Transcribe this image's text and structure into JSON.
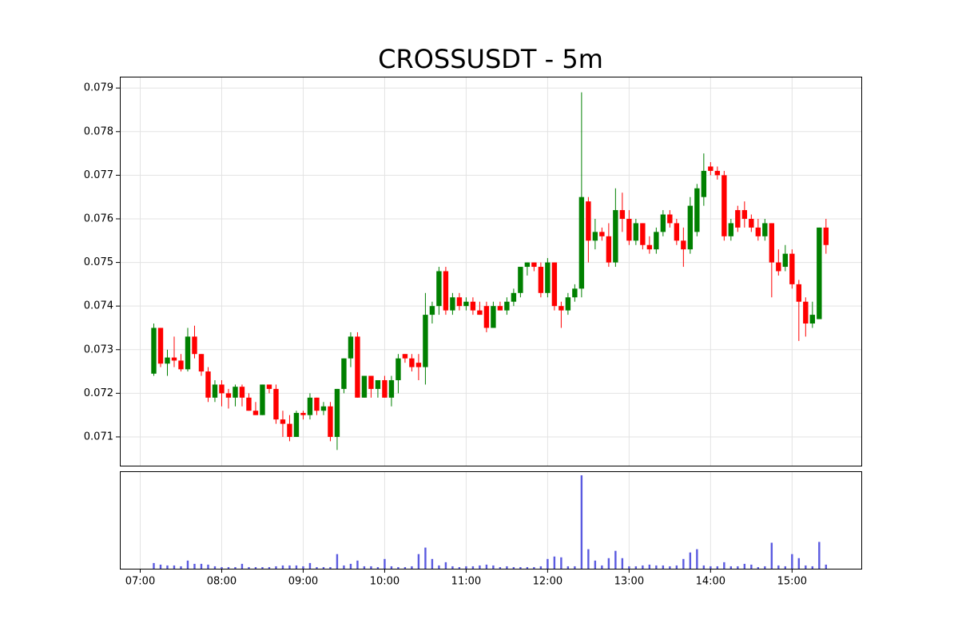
{
  "chart_data": {
    "type": "candlestick",
    "title": "CROSSUSDT - 5m",
    "x": [
      "07:10",
      "07:15",
      "07:20",
      "07:25",
      "07:30",
      "07:35",
      "07:40",
      "07:45",
      "07:50",
      "07:55",
      "08:00",
      "08:05",
      "08:10",
      "08:15",
      "08:20",
      "08:25",
      "08:30",
      "08:35",
      "08:40",
      "08:45",
      "08:50",
      "08:55",
      "09:00",
      "09:05",
      "09:10",
      "09:15",
      "09:20",
      "09:25",
      "09:30",
      "09:35",
      "09:40",
      "09:45",
      "09:50",
      "09:55",
      "10:00",
      "10:05",
      "10:10",
      "10:15",
      "10:20",
      "10:25",
      "10:30",
      "10:35",
      "10:40",
      "10:45",
      "10:50",
      "10:55",
      "11:00",
      "11:05",
      "11:10",
      "11:15",
      "11:20",
      "11:25",
      "11:30",
      "11:35",
      "11:40",
      "11:45",
      "11:50",
      "11:55",
      "12:00",
      "12:05",
      "12:10",
      "12:15",
      "12:20",
      "12:25",
      "12:30",
      "12:35",
      "12:40",
      "12:45",
      "12:50",
      "12:55",
      "13:00",
      "13:05",
      "13:10",
      "13:15",
      "13:20",
      "13:25",
      "13:30",
      "13:35",
      "13:40",
      "13:45",
      "13:50",
      "13:55",
      "14:00",
      "14:05",
      "14:10",
      "14:15",
      "14:20",
      "14:25",
      "14:30",
      "14:35",
      "14:40",
      "14:45",
      "14:50",
      "14:55",
      "15:00",
      "15:05",
      "15:10",
      "15:15",
      "15:20",
      "15:25"
    ],
    "open": [
      0.07245,
      0.0735,
      0.07268,
      0.07282,
      0.07275,
      0.07255,
      0.0733,
      0.0729,
      0.0725,
      0.0719,
      0.0722,
      0.072,
      0.0719,
      0.07215,
      0.0719,
      0.0716,
      0.0715,
      0.0722,
      0.0721,
      0.0714,
      0.0713,
      0.071,
      0.07155,
      0.0715,
      0.0719,
      0.0716,
      0.0717,
      0.071,
      0.0721,
      0.0728,
      0.0733,
      0.0719,
      0.0724,
      0.0721,
      0.0723,
      0.0719,
      0.0723,
      0.0729,
      0.0728,
      0.0727,
      0.0726,
      0.0738,
      0.074,
      0.0748,
      0.0739,
      0.0742,
      0.074,
      0.0741,
      0.0739,
      0.074,
      0.0735,
      0.074,
      0.0739,
      0.0741,
      0.0743,
      0.0749,
      0.075,
      0.0749,
      0.0743,
      0.075,
      0.074,
      0.0739,
      0.0742,
      0.0744,
      0.0764,
      0.0755,
      0.0757,
      0.0756,
      0.075,
      0.0762,
      0.076,
      0.0755,
      0.0759,
      0.0754,
      0.0753,
      0.0757,
      0.0761,
      0.0759,
      0.0755,
      0.0753,
      0.0757,
      0.0765,
      0.0772,
      0.0771,
      0.077,
      0.0756,
      0.0762,
      0.0762,
      0.076,
      0.0758,
      0.0756,
      0.0759,
      0.075,
      0.0749,
      0.0752,
      0.0745,
      0.0741,
      0.0736,
      0.0737,
      0.0758
    ],
    "high": [
      0.0736,
      0.0735,
      0.073,
      0.0733,
      0.0729,
      0.0735,
      0.07355,
      0.0729,
      0.0726,
      0.0723,
      0.0723,
      0.0721,
      0.0722,
      0.0722,
      0.072,
      0.0718,
      0.0722,
      0.0722,
      0.0722,
      0.0716,
      0.0715,
      0.0716,
      0.0716,
      0.072,
      0.0719,
      0.0718,
      0.0718,
      0.0721,
      0.0728,
      0.0734,
      0.0734,
      0.0724,
      0.0724,
      0.0723,
      0.0724,
      0.0724,
      0.0729,
      0.0729,
      0.0729,
      0.0729,
      0.0743,
      0.0741,
      0.0749,
      0.0749,
      0.0743,
      0.0743,
      0.0742,
      0.0742,
      0.0741,
      0.0741,
      0.0741,
      0.0741,
      0.0742,
      0.0744,
      0.0749,
      0.075,
      0.075,
      0.075,
      0.0751,
      0.075,
      0.0741,
      0.0743,
      0.0745,
      0.0789,
      0.0765,
      0.076,
      0.0758,
      0.0759,
      0.0767,
      0.0766,
      0.0762,
      0.076,
      0.0759,
      0.0756,
      0.0758,
      0.0762,
      0.0762,
      0.076,
      0.0758,
      0.0765,
      0.0768,
      0.0775,
      0.0773,
      0.0772,
      0.0771,
      0.076,
      0.0763,
      0.0764,
      0.0761,
      0.076,
      0.076,
      0.0759,
      0.0753,
      0.0754,
      0.0753,
      0.0746,
      0.0742,
      0.0741,
      0.0758,
      0.076
    ],
    "low": [
      0.0724,
      0.0726,
      0.0724,
      0.0726,
      0.0725,
      0.0725,
      0.0728,
      0.0724,
      0.0718,
      0.0718,
      0.0717,
      0.07165,
      0.0717,
      0.0717,
      0.0716,
      0.0715,
      0.0715,
      0.072,
      0.0713,
      0.071,
      0.0709,
      0.071,
      0.0714,
      0.0714,
      0.0715,
      0.0715,
      0.0709,
      0.0707,
      0.072,
      0.0726,
      0.0719,
      0.0719,
      0.0719,
      0.0719,
      0.0719,
      0.0717,
      0.072,
      0.0727,
      0.0725,
      0.0723,
      0.0722,
      0.0736,
      0.0738,
      0.0738,
      0.0738,
      0.0739,
      0.0739,
      0.0738,
      0.0738,
      0.0734,
      0.0735,
      0.0739,
      0.0738,
      0.074,
      0.0742,
      0.0747,
      0.0748,
      0.0742,
      0.0742,
      0.0739,
      0.0735,
      0.0738,
      0.0741,
      0.0742,
      0.075,
      0.0753,
      0.0755,
      0.0749,
      0.0749,
      0.0757,
      0.0754,
      0.0754,
      0.0753,
      0.0752,
      0.0752,
      0.0756,
      0.0758,
      0.0754,
      0.0749,
      0.0752,
      0.0756,
      0.0763,
      0.077,
      0.0769,
      0.0755,
      0.0755,
      0.0757,
      0.0758,
      0.0757,
      0.0755,
      0.0755,
      0.0742,
      0.0747,
      0.0748,
      0.0744,
      0.0732,
      0.0733,
      0.0735,
      0.0737,
      0.0752
    ],
    "close": [
      0.0735,
      0.07268,
      0.07282,
      0.07275,
      0.07255,
      0.0733,
      0.0729,
      0.0725,
      0.0719,
      0.0722,
      0.072,
      0.0719,
      0.07215,
      0.0719,
      0.0716,
      0.0715,
      0.0722,
      0.0721,
      0.0714,
      0.0713,
      0.071,
      0.07155,
      0.0715,
      0.0719,
      0.0716,
      0.0717,
      0.071,
      0.0721,
      0.0728,
      0.0733,
      0.0719,
      0.0724,
      0.0721,
      0.0723,
      0.0719,
      0.0723,
      0.0728,
      0.0728,
      0.0726,
      0.0726,
      0.0738,
      0.074,
      0.0748,
      0.0739,
      0.0742,
      0.074,
      0.0741,
      0.0739,
      0.0738,
      0.0735,
      0.074,
      0.0739,
      0.0741,
      0.0743,
      0.0749,
      0.075,
      0.0749,
      0.0743,
      0.075,
      0.074,
      0.0739,
      0.0742,
      0.0744,
      0.0765,
      0.0755,
      0.0757,
      0.0756,
      0.075,
      0.0762,
      0.076,
      0.0755,
      0.0759,
      0.0754,
      0.0753,
      0.0757,
      0.0761,
      0.0759,
      0.0755,
      0.0753,
      0.0763,
      0.0767,
      0.0771,
      0.0771,
      0.077,
      0.0756,
      0.0759,
      0.0758,
      0.076,
      0.0758,
      0.0756,
      0.0759,
      0.075,
      0.0748,
      0.0752,
      0.0745,
      0.0741,
      0.0736,
      0.0738,
      0.0758,
      0.0754
    ],
    "volume": [
      7,
      5,
      4,
      4,
      3,
      10,
      6,
      6,
      5,
      3,
      2,
      2,
      2,
      6,
      2,
      2,
      2,
      2,
      3,
      4,
      4,
      4,
      3,
      7,
      2,
      2,
      2,
      18,
      4,
      6,
      10,
      3,
      3,
      2,
      12,
      3,
      2,
      2,
      3,
      18,
      26,
      12,
      4,
      8,
      3,
      2,
      3,
      3,
      4,
      5,
      4,
      2,
      3,
      2,
      2,
      2,
      2,
      3,
      12,
      15,
      14,
      3,
      3,
      115,
      24,
      10,
      4,
      13,
      22,
      13,
      3,
      3,
      4,
      5,
      4,
      4,
      3,
      4,
      12,
      20,
      24,
      4,
      3,
      3,
      8,
      3,
      3,
      6,
      5,
      2,
      3,
      32,
      4,
      3,
      18,
      13,
      4,
      3,
      33,
      5
    ],
    "up_color": "#008000",
    "down_color": "#ff0000",
    "volume_color": "#5a5ae0",
    "xlim": [
      "06:45",
      "15:51"
    ],
    "xticks": [
      "07:00",
      "08:00",
      "09:00",
      "10:00",
      "11:00",
      "12:00",
      "13:00",
      "14:00",
      "15:00"
    ],
    "ylim": [
      0.07034,
      0.07926
    ],
    "yticks": [
      0.071,
      0.072,
      0.073,
      0.074,
      0.075,
      0.076,
      0.077,
      0.078,
      0.079
    ],
    "volume_ylim": [
      0,
      120
    ],
    "grid": true
  }
}
